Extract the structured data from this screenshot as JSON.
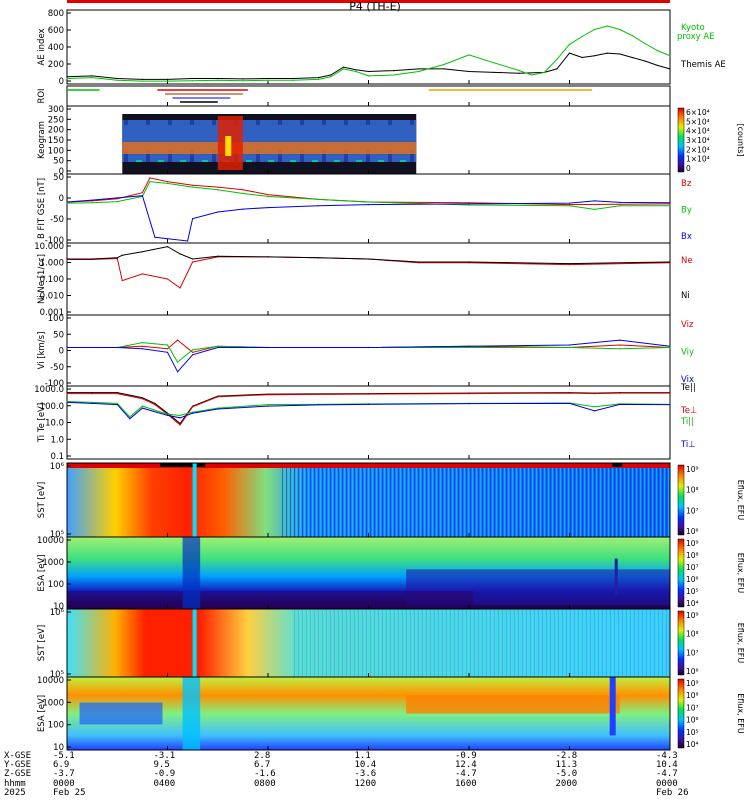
{
  "title": "P4 (TH-E)",
  "colors": {
    "red": "#e00000",
    "green": "#00c000",
    "blue": "#0000e0",
    "black": "#000000",
    "orange": "#f0a000",
    "cyan": "#40c0ff",
    "brown": "#c07040"
  },
  "panels": {
    "ae": {
      "ylabel": "AE index",
      "yticks": [
        "800",
        "600",
        "400",
        "200",
        "0"
      ],
      "legend_kyoto": "Kyoto proxy AE",
      "legend_themis": "Themis AE"
    },
    "roi": {
      "ylabel": "ROI"
    },
    "keogram": {
      "ylabel": "Keogram",
      "yticks": [
        "300",
        "250",
        "200",
        "150",
        "100",
        "50",
        "0"
      ],
      "colorbar_ticks": [
        "6×10⁴",
        "5×10⁴",
        "4×10⁴",
        "3×10⁴",
        "2×10⁴",
        "1×10⁴",
        "0"
      ],
      "colorbar_label": "[counts]"
    },
    "bfit": {
      "ylabel": "B FIT GSE [nT]",
      "yticks": [
        "50",
        "0",
        "-50",
        "-100"
      ],
      "legend": [
        "Bz",
        "By",
        "Bx"
      ]
    },
    "density": {
      "ylabel": "Ni Ne [1/cc]",
      "yticks": [
        "10.000",
        "1.000",
        "0.100",
        "0.010",
        "0.001"
      ],
      "legend": [
        "Ne",
        "Ni"
      ]
    },
    "velocity": {
      "ylabel": "Vi [km/s]",
      "yticks": [
        "100",
        "50",
        "0",
        "-50",
        "-100"
      ],
      "legend": [
        "Viz",
        "Viy",
        "Vix"
      ]
    },
    "temperature": {
      "ylabel": "Ti Te [eV]",
      "yticks": [
        "1000.0",
        "100.0",
        "10.0",
        "1.0",
        "0.1"
      ],
      "legend": [
        "Te||",
        "Te⊥",
        "Ti||",
        "Ti⊥"
      ]
    },
    "sst_e": {
      "ylabel": "SST [eV]",
      "yticks": [
        "10⁶",
        "10⁵"
      ],
      "colorbar_ticks": [
        "10⁹",
        "10⁸",
        "10⁷",
        "10⁶"
      ],
      "colorbar_label": "Eflux, EFU"
    },
    "esa_e": {
      "ylabel": "ESA [eV]",
      "yticks": [
        "10000",
        "1000",
        "100",
        "10"
      ],
      "colorbar_ticks": [
        "10⁹",
        "10⁸",
        "10⁷",
        "10⁶",
        "10⁵",
        "10⁴"
      ],
      "colorbar_label": "Eflux, EFU"
    },
    "sst_i": {
      "ylabel": "SST [eV]",
      "yticks": [
        "10⁶",
        "10⁵"
      ],
      "colorbar_ticks": [
        "10⁹",
        "10⁸",
        "10⁷",
        "10⁶"
      ],
      "colorbar_label": "Eflux, EFU"
    },
    "esa_i": {
      "ylabel": "ESA [eV]",
      "yticks": [
        "10000",
        "1000",
        "100",
        "10"
      ],
      "colorbar_ticks": [
        "10⁹",
        "10⁸",
        "10⁷",
        "10⁶",
        "10⁵",
        "10⁴"
      ],
      "colorbar_label": "Eflux, EFU"
    }
  },
  "xaxis": {
    "row_labels": [
      "X-GSE",
      "Y-GSE",
      "Z-GSE",
      "hhmm",
      "2025"
    ],
    "ticks": [
      {
        "x": "-5.1",
        "y": "6.9",
        "z": "-3.7",
        "t": "0000",
        "d": "Feb 25"
      },
      {
        "x": "-3.1",
        "y": "9.5",
        "z": "-0.9",
        "t": "0400",
        "d": ""
      },
      {
        "x": "2.8",
        "y": "6.7",
        "z": "-1.6",
        "t": "0800",
        "d": ""
      },
      {
        "x": "1.1",
        "y": "10.4",
        "z": "-3.6",
        "t": "1200",
        "d": ""
      },
      {
        "x": "-0.9",
        "y": "12.4",
        "z": "-4.7",
        "t": "1600",
        "d": ""
      },
      {
        "x": "-2.8",
        "y": "11.3",
        "z": "-5.0",
        "t": "2000",
        "d": ""
      },
      {
        "x": "-4.3",
        "y": "10.4",
        "z": "-4.7",
        "t": "0000",
        "d": "Feb 26"
      }
    ]
  },
  "chart_data": {
    "type": "line",
    "title": "P4 (TH-E)",
    "x_unit": "hours since 2025-02-25 00:00",
    "xlim": [
      0,
      24
    ],
    "series": [
      {
        "panel": "ae",
        "name": "Themis AE",
        "x": [
          0,
          1,
          2,
          3,
          4,
          5,
          6,
          7,
          8,
          9,
          10,
          10.5,
          11,
          11.5,
          12,
          13,
          14,
          15,
          16,
          17,
          18,
          19,
          19.5,
          20,
          20.5,
          21,
          21.5,
          22,
          22.5,
          23,
          23.5,
          24
        ],
        "y": [
          60,
          70,
          40,
          30,
          30,
          40,
          40,
          35,
          40,
          40,
          50,
          80,
          170,
          140,
          120,
          130,
          150,
          150,
          120,
          110,
          100,
          110,
          150,
          330,
          280,
          300,
          330,
          320,
          280,
          240,
          190,
          150
        ]
      },
      {
        "panel": "ae",
        "name": "Kyoto proxy AE",
        "x": [
          0,
          1,
          2,
          3,
          4,
          5,
          6,
          7,
          8,
          9,
          10,
          10.5,
          11,
          11.5,
          12,
          13,
          14,
          15,
          16,
          17,
          18,
          18.5,
          19,
          19.5,
          20,
          20.5,
          21,
          21.5,
          22,
          22.5,
          23,
          23.5,
          24
        ],
        "y": [
          40,
          50,
          20,
          10,
          10,
          15,
          20,
          15,
          20,
          20,
          30,
          60,
          150,
          120,
          70,
          80,
          120,
          200,
          310,
          220,
          130,
          80,
          110,
          260,
          430,
          520,
          600,
          640,
          600,
          530,
          440,
          360,
          300
        ]
      },
      {
        "panel": "bfit",
        "name": "Bz",
        "x": [
          0,
          1,
          2,
          3,
          3.3,
          4,
          5,
          6,
          7,
          8,
          10,
          12,
          16,
          20,
          24
        ],
        "y": [
          5,
          8,
          14,
          30,
          70,
          60,
          50,
          45,
          38,
          25,
          12,
          5,
          3,
          -2,
          0
        ]
      },
      {
        "panel": "bfit",
        "name": "By",
        "x": [
          0,
          1,
          2,
          3,
          3.3,
          4,
          5,
          6,
          7,
          8,
          10,
          12,
          16,
          20,
          21,
          22,
          24
        ],
        "y": [
          2,
          3,
          6,
          20,
          60,
          55,
          45,
          38,
          28,
          20,
          12,
          5,
          -3,
          -5,
          -15,
          -5,
          -5
        ]
      },
      {
        "panel": "bfit",
        "name": "Bx",
        "x": [
          0,
          1,
          2,
          3,
          3.5,
          4.8,
          5,
          6,
          7,
          8,
          10,
          12,
          16,
          20,
          21,
          22,
          24
        ],
        "y": [
          5,
          10,
          16,
          22,
          -90,
          -110,
          -40,
          -22,
          -14,
          -10,
          -5,
          -2,
          0,
          2,
          8,
          4,
          3
        ]
      },
      {
        "panel": "density",
        "name": "Ne",
        "x": [
          0,
          1,
          2,
          2.2,
          3,
          4,
          4.5,
          5,
          6,
          8,
          10,
          12,
          14,
          16,
          20,
          24
        ],
        "y": [
          1.4,
          1.4,
          1.6,
          0.08,
          0.2,
          0.1,
          0.03,
          1.0,
          2.0,
          2.0,
          1.8,
          1.5,
          0.9,
          0.9,
          0.7,
          0.9
        ]
      },
      {
        "panel": "density",
        "name": "Ni",
        "x": [
          0,
          1,
          2,
          2.2,
          3,
          4,
          4.5,
          5,
          6,
          8,
          10,
          12,
          14,
          16,
          20,
          24
        ],
        "y": [
          1.5,
          1.5,
          1.8,
          2.5,
          4,
          8,
          3,
          1.5,
          2.2,
          2.0,
          1.8,
          1.5,
          1.0,
          1.0,
          0.8,
          1.0
        ]
      },
      {
        "panel": "velocity",
        "name": "Viz",
        "x": [
          0,
          2,
          3,
          4,
          4.4,
          5,
          6,
          8,
          12,
          16,
          20,
          22,
          24
        ],
        "y": [
          0,
          0,
          5,
          -5,
          30,
          -20,
          5,
          0,
          0,
          5,
          0,
          10,
          0
        ]
      },
      {
        "panel": "velocity",
        "name": "Viy",
        "x": [
          0,
          2,
          3,
          4,
          4.4,
          5,
          6,
          8,
          12,
          16,
          20,
          22,
          24
        ],
        "y": [
          0,
          0,
          20,
          10,
          -60,
          -10,
          5,
          0,
          0,
          0,
          0,
          -5,
          0
        ]
      },
      {
        "panel": "velocity",
        "name": "Vix",
        "x": [
          0,
          2,
          3,
          4,
          4.4,
          5,
          6,
          8,
          12,
          16,
          20,
          22,
          24
        ],
        "y": [
          0,
          0,
          -5,
          -20,
          -100,
          -30,
          0,
          0,
          0,
          5,
          10,
          30,
          5
        ]
      },
      {
        "panel": "temperature",
        "name": "Te||",
        "x": [
          0,
          1,
          2,
          3,
          3.5,
          4,
          4.5,
          5,
          6,
          8,
          12,
          16,
          20,
          21,
          22,
          24
        ],
        "y": [
          1500,
          1500,
          1500,
          700,
          300,
          70,
          15,
          200,
          900,
          1200,
          1300,
          1400,
          1500,
          1400,
          1500,
          1500
        ]
      },
      {
        "panel": "temperature",
        "name": "Te⊥",
        "x": [
          0,
          1,
          2,
          3,
          3.5,
          4,
          4.5,
          5,
          6,
          8,
          12,
          16,
          20,
          21,
          22,
          24
        ],
        "y": [
          1300,
          1300,
          1300,
          600,
          250,
          60,
          12,
          180,
          800,
          1100,
          1200,
          1300,
          1400,
          1300,
          1400,
          1400
        ]
      },
      {
        "panel": "temperature",
        "name": "Ti||",
        "x": [
          0,
          1,
          2,
          2.5,
          3,
          4,
          4.5,
          5,
          6,
          8,
          10,
          12,
          16,
          20,
          21,
          22,
          24
        ],
        "y": [
          400,
          350,
          300,
          40,
          200,
          60,
          50,
          80,
          150,
          250,
          260,
          280,
          300,
          320,
          180,
          280,
          260
        ]
      },
      {
        "panel": "temperature",
        "name": "Ti⊥",
        "x": [
          0,
          1,
          2,
          2.5,
          3,
          4,
          4.5,
          5,
          6,
          8,
          10,
          12,
          16,
          20,
          21,
          22,
          24
        ],
        "y": [
          350,
          300,
          250,
          30,
          150,
          50,
          35,
          70,
          130,
          200,
          240,
          260,
          290,
          300,
          100,
          260,
          250
        ]
      }
    ],
    "ae_ylim": [
      0,
      800
    ],
    "bfit_ylim": [
      -100,
      75
    ],
    "density_ylim_log": [
      0.001,
      10
    ],
    "velocity_ylim": [
      -150,
      125
    ],
    "temperature_ylim_log": [
      0.1,
      3000
    ]
  }
}
